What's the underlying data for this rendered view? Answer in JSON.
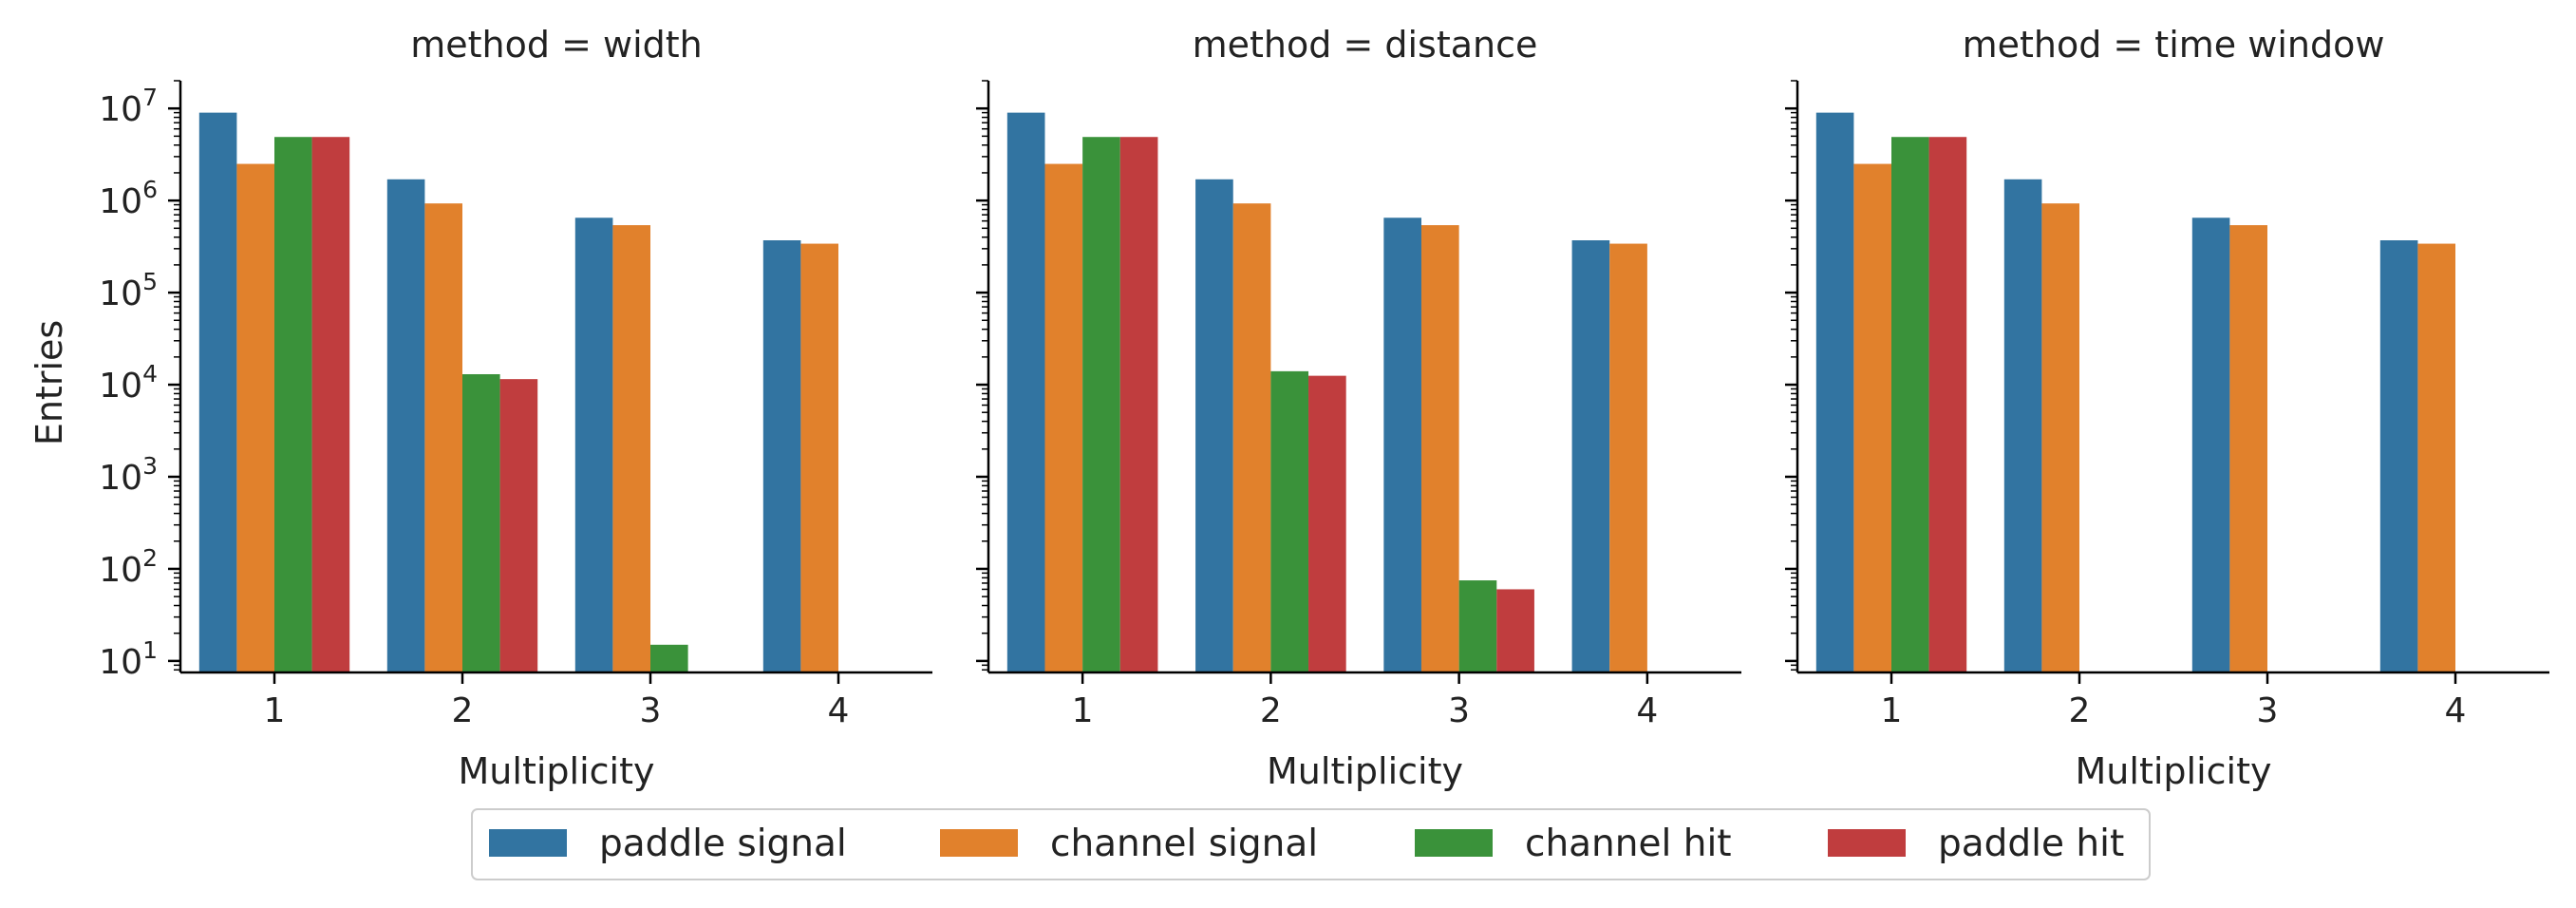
{
  "chart_data": {
    "type": "bar",
    "facet_variable": "method",
    "facets": [
      {
        "title": "method = width",
        "series_values": {
          "paddle signal": [
            9000000,
            1700000,
            650000,
            370000
          ],
          "channel signal": [
            2500000,
            930000,
            540000,
            340000
          ],
          "channel hit": [
            4900000,
            13000,
            15,
            null
          ],
          "paddle hit": [
            4900000,
            11500,
            null,
            null
          ]
        }
      },
      {
        "title": "method = distance",
        "series_values": {
          "paddle signal": [
            9000000,
            1700000,
            650000,
            370000
          ],
          "channel signal": [
            2500000,
            930000,
            540000,
            340000
          ],
          "channel hit": [
            4900000,
            14000,
            75,
            null
          ],
          "paddle hit": [
            4900000,
            12500,
            60,
            null
          ]
        }
      },
      {
        "title": "method = time window",
        "series_values": {
          "paddle signal": [
            9000000,
            1700000,
            650000,
            370000
          ],
          "channel signal": [
            2500000,
            930000,
            540000,
            340000
          ],
          "channel hit": [
            4900000,
            null,
            null,
            null
          ],
          "paddle hit": [
            4900000,
            null,
            null,
            null
          ]
        }
      }
    ],
    "categories": [
      "1",
      "2",
      "3",
      "4"
    ],
    "series": [
      {
        "name": "paddle signal",
        "color": "#3274a1"
      },
      {
        "name": "channel signal",
        "color": "#e1812c"
      },
      {
        "name": "channel hit",
        "color": "#3a923a"
      },
      {
        "name": "paddle hit",
        "color": "#c03d3e"
      }
    ],
    "xlabel": "Multiplicity",
    "ylabel": "Entries",
    "yscale": "log",
    "ylim": [
      7.5,
      20000000
    ],
    "yticks": [
      {
        "base": "10",
        "exp": "1",
        "value": 10
      },
      {
        "base": "10",
        "exp": "2",
        "value": 100
      },
      {
        "base": "10",
        "exp": "3",
        "value": 1000
      },
      {
        "base": "10",
        "exp": "4",
        "value": 10000
      },
      {
        "base": "10",
        "exp": "5",
        "value": 100000
      },
      {
        "base": "10",
        "exp": "6",
        "value": 1000000
      },
      {
        "base": "10",
        "exp": "7",
        "value": 10000000
      }
    ],
    "grid": false,
    "legend_position": "bottom-center"
  }
}
